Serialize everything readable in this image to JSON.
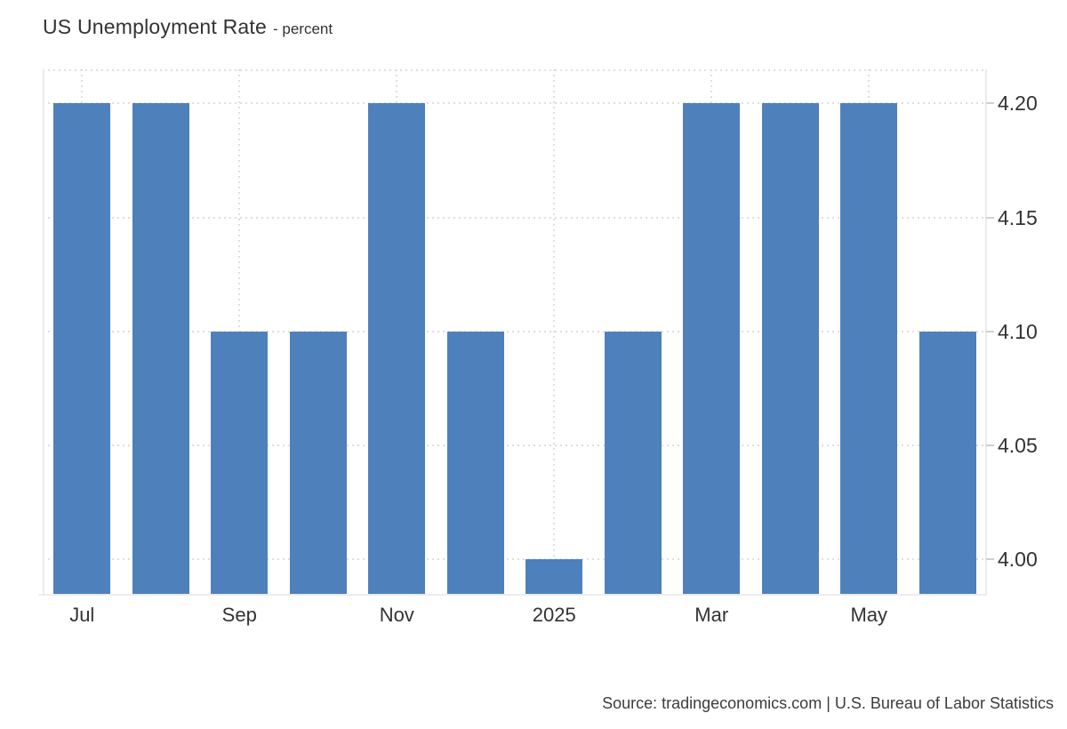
{
  "header": {
    "title": "US Unemployment Rate",
    "subtitle": "- percent"
  },
  "footer": {
    "source": "Source: tradingeconomics.com | U.S. Bureau of Labor Statistics"
  },
  "chart_data": {
    "type": "bar",
    "title": "US Unemployment Rate",
    "unit": "percent",
    "values": [
      4.2,
      4.2,
      4.1,
      4.1,
      4.2,
      4.1,
      4.0,
      4.1,
      4.2,
      4.2,
      4.2,
      4.1
    ],
    "x_ticks": [
      {
        "bar_index": 0,
        "label": "Jul"
      },
      {
        "bar_index": 2,
        "label": "Sep"
      },
      {
        "bar_index": 4,
        "label": "Nov"
      },
      {
        "bar_index": 6,
        "label": "2025"
      },
      {
        "bar_index": 8,
        "label": "Mar"
      },
      {
        "bar_index": 10,
        "label": "May"
      }
    ],
    "y_ticks": [
      {
        "value": 4.2,
        "label": "4.20"
      },
      {
        "value": 4.15,
        "label": "4.15"
      },
      {
        "value": 4.1,
        "label": "4.10"
      },
      {
        "value": 4.05,
        "label": "4.05"
      },
      {
        "value": 4.0,
        "label": "4.00"
      }
    ],
    "ylim": [
      3.984,
      4.215
    ],
    "bar_color": "#4e80bc",
    "grid": "dotted",
    "y_axis_side": "right",
    "legend": "none"
  }
}
